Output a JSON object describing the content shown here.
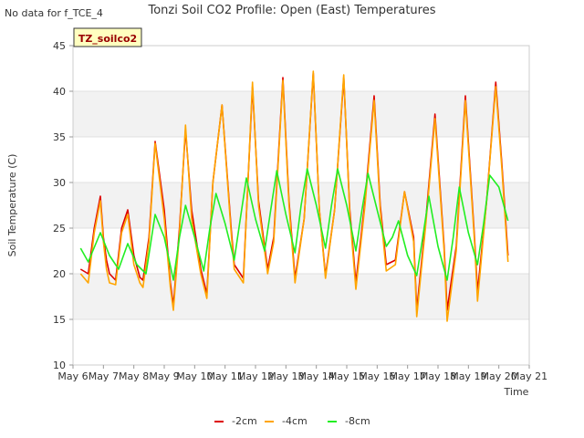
{
  "no_data_text": "No data for f_TCE_4",
  "badge_label": "TZ_soilco2",
  "chart_data": {
    "type": "line",
    "title": "Tonzi Soil CO2 Profile: Open (East) Temperatures",
    "xlabel": "Time",
    "ylabel": "Soil Temperature (C)",
    "xlim": [
      6,
      21
    ],
    "ylim": [
      10,
      45
    ],
    "x_ticks": [
      6,
      7,
      8,
      9,
      10,
      11,
      12,
      13,
      14,
      15,
      16,
      17,
      18,
      19,
      20,
      21
    ],
    "x_tick_labels": [
      "May 6",
      "May 7",
      "May 8",
      "May 9",
      "May 10",
      "May 11",
      "May 12",
      "May 13",
      "May 14",
      "May 15",
      "May 16",
      "May 17",
      "May 18",
      "May 19",
      "May 20",
      "May 21"
    ],
    "y_ticks": [
      10,
      15,
      20,
      25,
      30,
      35,
      40,
      45
    ],
    "grid": true,
    "legend_position": "bottom",
    "colors": {
      "-2cm": "#dd0000",
      "-4cm": "#ffa500",
      "-8cm": "#22ee22"
    },
    "series": [
      {
        "name": "-2cm",
        "x": [
          6.25,
          6.5,
          6.7,
          6.9,
          7.0,
          7.1,
          7.2,
          7.4,
          7.6,
          7.8,
          8.0,
          8.2,
          8.3,
          8.5,
          8.7,
          9.0,
          9.2,
          9.3,
          9.5,
          9.7,
          9.9,
          10.2,
          10.4,
          10.6,
          10.9,
          11.2,
          11.3,
          11.6,
          11.9,
          12.1,
          12.4,
          12.6,
          12.9,
          13.1,
          13.3,
          13.6,
          13.9,
          14.1,
          14.3,
          14.6,
          14.9,
          15.1,
          15.3,
          15.6,
          15.9,
          16.1,
          16.3,
          16.6,
          16.9,
          17.2,
          17.3,
          17.6,
          17.9,
          18.2,
          18.3,
          18.6,
          18.9,
          19.2,
          19.3,
          19.6,
          19.9,
          20.1,
          20.3
        ],
        "y": [
          20.5,
          20.0,
          25.0,
          28.5,
          24.0,
          21.5,
          20.0,
          19.3,
          25.0,
          27.0,
          22.0,
          19.6,
          19.3,
          24.0,
          34.5,
          27.0,
          19.0,
          16.5,
          25.0,
          35.8,
          27.0,
          20.5,
          17.8,
          30.0,
          38.5,
          25.0,
          21.0,
          19.5,
          40.5,
          28.0,
          20.5,
          24.0,
          41.5,
          28.0,
          19.5,
          26.0,
          42.0,
          27.0,
          19.8,
          27.0,
          41.5,
          27.0,
          19.0,
          28.0,
          39.5,
          27.5,
          21.0,
          21.5,
          29.0,
          24.0,
          16.0,
          26.0,
          37.5,
          23.0,
          16.0,
          23.0,
          39.5,
          24.0,
          18.0,
          28.0,
          41.0,
          32.0,
          22.0
        ]
      },
      {
        "name": "-4cm",
        "x": [
          6.25,
          6.5,
          6.7,
          6.9,
          7.0,
          7.1,
          7.2,
          7.4,
          7.6,
          7.8,
          8.0,
          8.2,
          8.3,
          8.5,
          8.7,
          9.0,
          9.2,
          9.3,
          9.5,
          9.7,
          9.9,
          10.2,
          10.4,
          10.6,
          10.9,
          11.2,
          11.3,
          11.6,
          11.9,
          12.1,
          12.4,
          12.6,
          12.9,
          13.1,
          13.3,
          13.6,
          13.9,
          14.1,
          14.3,
          14.6,
          14.9,
          15.1,
          15.3,
          15.6,
          15.9,
          16.1,
          16.3,
          16.6,
          16.9,
          17.2,
          17.3,
          17.6,
          17.9,
          18.2,
          18.3,
          18.6,
          18.9,
          19.2,
          19.3,
          19.6,
          19.9,
          20.1,
          20.3
        ],
        "y": [
          20.0,
          19.0,
          24.5,
          28.0,
          23.5,
          20.5,
          19.0,
          18.8,
          24.5,
          26.5,
          21.0,
          19.0,
          18.5,
          23.5,
          34.3,
          26.0,
          18.5,
          16.0,
          24.5,
          36.3,
          26.0,
          20.0,
          17.3,
          30.0,
          38.5,
          24.5,
          20.5,
          19.0,
          41.0,
          27.5,
          20.0,
          23.5,
          41.2,
          27.5,
          19.0,
          26.0,
          42.2,
          27.0,
          19.5,
          27.0,
          41.8,
          26.5,
          18.3,
          27.5,
          39.0,
          27.0,
          20.3,
          21.0,
          29.0,
          23.5,
          15.3,
          25.5,
          37.0,
          22.5,
          14.8,
          22.5,
          39.0,
          23.5,
          17.0,
          28.0,
          40.5,
          31.5,
          21.3
        ]
      },
      {
        "name": "-8cm",
        "x": [
          6.25,
          6.5,
          6.9,
          7.2,
          7.5,
          7.8,
          8.1,
          8.4,
          8.7,
          9.0,
          9.3,
          9.5,
          9.7,
          10.0,
          10.3,
          10.5,
          10.7,
          11.0,
          11.3,
          11.5,
          11.7,
          12.0,
          12.3,
          12.5,
          12.7,
          13.0,
          13.3,
          13.5,
          13.7,
          14.0,
          14.3,
          14.5,
          14.7,
          15.0,
          15.3,
          15.5,
          15.7,
          16.0,
          16.3,
          16.5,
          16.7,
          17.0,
          17.3,
          17.5,
          17.7,
          18.0,
          18.3,
          18.5,
          18.7,
          19.0,
          19.3,
          19.5,
          19.7,
          20.0,
          20.3
        ],
        "y": [
          22.8,
          21.3,
          24.5,
          22.0,
          20.5,
          23.3,
          21.0,
          20.0,
          26.5,
          24.0,
          19.3,
          24.0,
          27.5,
          24.0,
          20.3,
          25.0,
          28.8,
          25.5,
          21.5,
          26.0,
          30.5,
          26.0,
          22.5,
          27.0,
          31.3,
          26.5,
          22.3,
          27.5,
          31.5,
          27.5,
          22.8,
          27.5,
          31.5,
          27.5,
          22.5,
          27.0,
          31.0,
          27.0,
          23.0,
          24.0,
          25.8,
          22.0,
          19.8,
          24.0,
          28.5,
          23.0,
          19.3,
          24.0,
          29.5,
          24.5,
          21.0,
          25.5,
          30.8,
          29.5,
          25.8
        ]
      }
    ]
  }
}
